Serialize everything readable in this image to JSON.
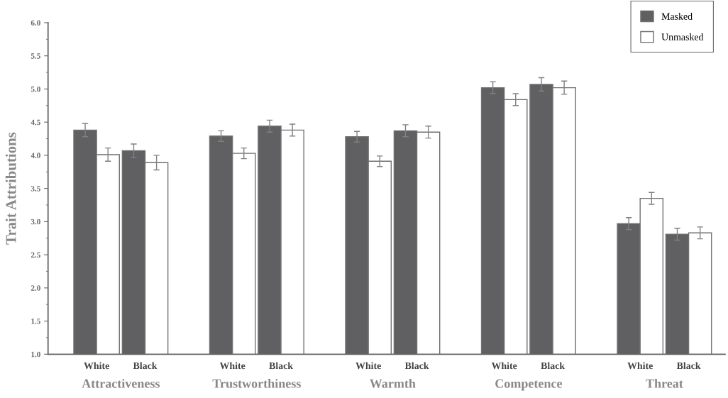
{
  "chart_data": {
    "type": "bar",
    "ylabel": "Trait Attributions",
    "categories": [
      "White",
      "Black",
      "White",
      "Black",
      "White",
      "Black",
      "White",
      "Black",
      "White",
      "Black"
    ],
    "annotations": [
      "Attractiveness",
      "Trustworthiness",
      "Warmth",
      "Competence",
      "Threat"
    ],
    "series": [
      {
        "name": "Masked",
        "color": "#606063",
        "values": [
          4.38,
          4.07,
          4.29,
          4.44,
          4.28,
          4.37,
          5.02,
          5.07,
          2.97,
          2.81
        ],
        "errors": [
          0.1,
          0.1,
          0.08,
          0.09,
          0.08,
          0.09,
          0.09,
          0.1,
          0.09,
          0.09
        ]
      },
      {
        "name": "Unmasked",
        "color": "#ffffff",
        "values": [
          4.01,
          3.89,
          4.03,
          4.38,
          3.91,
          4.35,
          4.84,
          5.02,
          3.35,
          2.83
        ],
        "errors": [
          0.1,
          0.11,
          0.08,
          0.09,
          0.08,
          0.09,
          0.09,
          0.1,
          0.09,
          0.09
        ]
      }
    ],
    "ylim": [
      1.0,
      6.0
    ],
    "yticks": [
      {
        "value": 1.0,
        "label": "1.0"
      },
      {
        "value": 1.5,
        "label": "1.5"
      },
      {
        "value": 2.0,
        "label": "2.0"
      },
      {
        "value": 2.5,
        "label": "2.5"
      },
      {
        "value": 3.0,
        "label": "3.0"
      },
      {
        "value": 3.5,
        "label": "3.5"
      },
      {
        "value": 4.0,
        "label": "4.0"
      },
      {
        "value": 4.5,
        "label": "4.5"
      },
      {
        "value": 5.0,
        "label": "5.0"
      },
      {
        "value": 5.5,
        "label": "5.5"
      },
      {
        "value": 6.0,
        "label": "6.0"
      }
    ],
    "legend": "top right",
    "grid": false
  }
}
